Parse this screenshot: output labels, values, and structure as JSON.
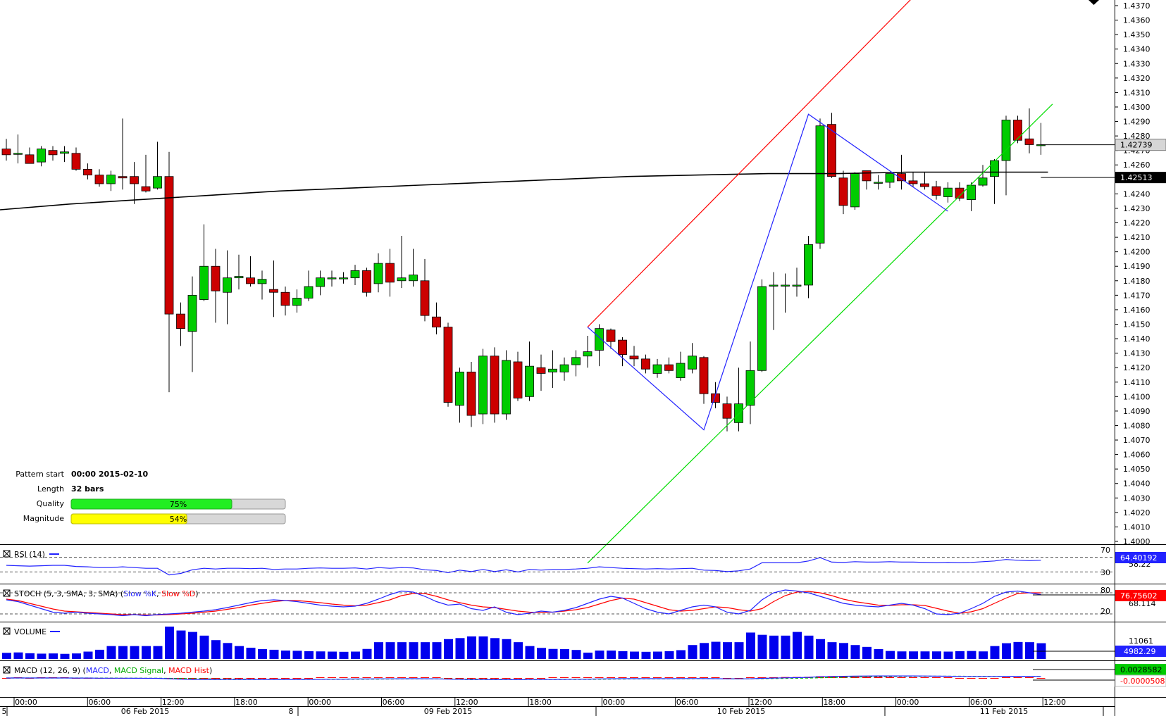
{
  "chart_data": {
    "type": "candlestick",
    "price_axis": {
      "range": [
        1.4,
        1.437
      ],
      "tick_labels": [
        "1.4370",
        "1.4360",
        "1.4350",
        "1.4340",
        "1.4330",
        "1.4320",
        "1.4310",
        "1.4300",
        "1.4290",
        "1.4280",
        "1.4270",
        "1.4260",
        "1.4250",
        "1.4240",
        "1.4230",
        "1.4220",
        "1.4210",
        "1.4200",
        "1.4190",
        "1.4180",
        "1.4170",
        "1.4160",
        "1.4150",
        "1.4140",
        "1.4130",
        "1.4120",
        "1.4110",
        "1.4100",
        "1.4090",
        "1.4080",
        "1.4070",
        "1.4060",
        "1.4050",
        "1.4040",
        "1.4030",
        "1.4020",
        "1.4010",
        "1.4000"
      ],
      "current_price": "1.42739",
      "ma_value": "1.42513"
    },
    "time_axis": {
      "hour_labels": [
        "00:00",
        "06:00",
        "12:00",
        "18:00",
        "00:00",
        "06:00",
        "12:00",
        "18:00",
        "00:00",
        "06:00",
        "12:00",
        "18:00",
        "00:00",
        "06:00",
        "12:00"
      ],
      "date_labels": [
        "06 Feb 2015",
        "09 Feb 2015",
        "10 Feb 2015",
        "11 Feb 2015"
      ],
      "edge_labels": [
        "5",
        "8"
      ]
    },
    "candles": [
      [
        1.4271,
        1.4278,
        1.4263,
        1.4267
      ],
      [
        1.4268,
        1.4281,
        1.4261,
        1.4268
      ],
      [
        1.4267,
        1.4272,
        1.4261,
        1.4261
      ],
      [
        1.4262,
        1.4273,
        1.4259,
        1.4271
      ],
      [
        1.427,
        1.4273,
        1.4263,
        1.4267
      ],
      [
        1.4268,
        1.4273,
        1.4262,
        1.4269
      ],
      [
        1.4268,
        1.4272,
        1.4256,
        1.4257
      ],
      [
        1.4257,
        1.4261,
        1.425,
        1.4253
      ],
      [
        1.4253,
        1.4257,
        1.4245,
        1.4247
      ],
      [
        1.4247,
        1.4256,
        1.4242,
        1.4253
      ],
      [
        1.4252,
        1.4292,
        1.4243,
        1.4251
      ],
      [
        1.4252,
        1.4262,
        1.4233,
        1.4247
      ],
      [
        1.4245,
        1.4267,
        1.4241,
        1.4242
      ],
      [
        1.4244,
        1.4276,
        1.4243,
        1.4252
      ],
      [
        1.4252,
        1.4269,
        1.4103,
        1.4157
      ],
      [
        1.4157,
        1.4165,
        1.4135,
        1.4147
      ],
      [
        1.4145,
        1.4183,
        1.4117,
        1.417
      ],
      [
        1.4167,
        1.4219,
        1.4166,
        1.419
      ],
      [
        1.419,
        1.4202,
        1.4151,
        1.4173
      ],
      [
        1.4172,
        1.4201,
        1.415,
        1.4182
      ],
      [
        1.4182,
        1.4198,
        1.4174,
        1.4183
      ],
      [
        1.4182,
        1.4197,
        1.4176,
        1.4178
      ],
      [
        1.4178,
        1.4187,
        1.4167,
        1.4181
      ],
      [
        1.4174,
        1.4194,
        1.4155,
        1.4172
      ],
      [
        1.4172,
        1.4176,
        1.4156,
        1.4163
      ],
      [
        1.4163,
        1.4174,
        1.4158,
        1.4168
      ],
      [
        1.4168,
        1.4187,
        1.4166,
        1.4176
      ],
      [
        1.4176,
        1.4187,
        1.417,
        1.4182
      ],
      [
        1.4182,
        1.4187,
        1.4176,
        1.4182
      ],
      [
        1.4182,
        1.4186,
        1.4178,
        1.4182
      ],
      [
        1.4182,
        1.4191,
        1.4177,
        1.4187
      ],
      [
        1.4187,
        1.4189,
        1.4169,
        1.4172
      ],
      [
        1.4178,
        1.4199,
        1.4172,
        1.4192
      ],
      [
        1.4192,
        1.4202,
        1.4169,
        1.4179
      ],
      [
        1.418,
        1.4211,
        1.4175,
        1.4182
      ],
      [
        1.418,
        1.4202,
        1.4176,
        1.4184
      ],
      [
        1.418,
        1.4195,
        1.4152,
        1.4156
      ],
      [
        1.4155,
        1.4165,
        1.4143,
        1.4148
      ],
      [
        1.4148,
        1.4151,
        1.4093,
        1.4096
      ],
      [
        1.4094,
        1.412,
        1.4082,
        1.4117
      ],
      [
        1.4117,
        1.4124,
        1.4079,
        1.4087
      ],
      [
        1.4088,
        1.4133,
        1.4081,
        1.4128
      ],
      [
        1.4128,
        1.4134,
        1.4082,
        1.4088
      ],
      [
        1.4088,
        1.4132,
        1.4084,
        1.4125
      ],
      [
        1.4124,
        1.4131,
        1.4097,
        1.4099
      ],
      [
        1.41,
        1.4138,
        1.4097,
        1.4121
      ],
      [
        1.412,
        1.4129,
        1.4104,
        1.4116
      ],
      [
        1.4117,
        1.4132,
        1.4106,
        1.4119
      ],
      [
        1.4117,
        1.4127,
        1.4111,
        1.4122
      ],
      [
        1.4122,
        1.4132,
        1.4114,
        1.4127
      ],
      [
        1.4128,
        1.4142,
        1.412,
        1.4131
      ],
      [
        1.4132,
        1.415,
        1.4121,
        1.4147
      ],
      [
        1.4146,
        1.4147,
        1.4133,
        1.4138
      ],
      [
        1.4139,
        1.4141,
        1.4121,
        1.4129
      ],
      [
        1.4128,
        1.4135,
        1.4121,
        1.4126
      ],
      [
        1.4126,
        1.4129,
        1.4116,
        1.4119
      ],
      [
        1.4116,
        1.4126,
        1.4113,
        1.4122
      ],
      [
        1.4122,
        1.4127,
        1.4116,
        1.4118
      ],
      [
        1.4113,
        1.4131,
        1.4111,
        1.4123
      ],
      [
        1.4119,
        1.4137,
        1.4116,
        1.4128
      ],
      [
        1.4127,
        1.4128,
        1.4095,
        1.4102
      ],
      [
        1.4102,
        1.411,
        1.4092,
        1.4096
      ],
      [
        1.4095,
        1.41,
        1.4076,
        1.4085
      ],
      [
        1.4082,
        1.412,
        1.4076,
        1.4095
      ],
      [
        1.4094,
        1.4138,
        1.4081,
        1.4118
      ],
      [
        1.4118,
        1.4181,
        1.4117,
        1.4176
      ],
      [
        1.4177,
        1.4186,
        1.4146,
        1.4177
      ],
      [
        1.4177,
        1.4185,
        1.4158,
        1.4177
      ],
      [
        1.4177,
        1.4189,
        1.4169,
        1.4177
      ],
      [
        1.4177,
        1.4211,
        1.4168,
        1.4205
      ],
      [
        1.4206,
        1.4292,
        1.4202,
        1.4287
      ],
      [
        1.4288,
        1.4296,
        1.4251,
        1.4252
      ],
      [
        1.4251,
        1.4256,
        1.4226,
        1.4232
      ],
      [
        1.4231,
        1.4255,
        1.4229,
        1.4254
      ],
      [
        1.4256,
        1.4256,
        1.4243,
        1.4249
      ],
      [
        1.4248,
        1.4253,
        1.4243,
        1.4248
      ],
      [
        1.4248,
        1.4254,
        1.4244,
        1.4254
      ],
      [
        1.4254,
        1.4267,
        1.4243,
        1.4249
      ],
      [
        1.4249,
        1.4255,
        1.4245,
        1.4247
      ],
      [
        1.4247,
        1.4255,
        1.4243,
        1.4245
      ],
      [
        1.4245,
        1.4249,
        1.4236,
        1.4239
      ],
      [
        1.4238,
        1.4248,
        1.4234,
        1.4244
      ],
      [
        1.4244,
        1.4248,
        1.4235,
        1.4237
      ],
      [
        1.4236,
        1.4248,
        1.4228,
        1.4246
      ],
      [
        1.4246,
        1.426,
        1.4245,
        1.4251
      ],
      [
        1.4252,
        1.4264,
        1.4233,
        1.4263
      ],
      [
        1.4263,
        1.4294,
        1.4239,
        1.4291
      ],
      [
        1.4291,
        1.4294,
        1.4275,
        1.4277
      ],
      [
        1.4278,
        1.4299,
        1.4268,
        1.4274
      ],
      [
        1.4274,
        1.4289,
        1.4267,
        1.4274
      ]
    ],
    "moving_average": [
      1.4229,
      1.4233,
      1.4236,
      1.4239,
      1.4242,
      1.4244,
      1.4246,
      1.4248,
      1.425,
      1.4252,
      1.4253,
      1.4254,
      1.4254,
      1.4255,
      1.4255,
      1.4255
    ],
    "annotation_lines": {
      "red": [
        [
          50,
          1.4148
        ],
        [
          79,
          1.4384
        ]
      ],
      "green": [
        [
          50,
          1.3985
        ],
        [
          90,
          1.4302
        ]
      ],
      "blue": [
        [
          50,
          1.4148
        ],
        [
          60,
          1.4077
        ],
        [
          69,
          1.4295
        ],
        [
          81,
          1.4228
        ]
      ]
    },
    "info_panel": {
      "pattern_start_label": "Pattern start",
      "pattern_start_value": "00:00 2015-02-10",
      "length_label": "Length",
      "length_value": "32 bars",
      "quality_label": "Quality",
      "quality_value": 75,
      "quality_text": "75%",
      "magnitude_label": "Magnitude",
      "magnitude_value": 54,
      "magnitude_text": "54%"
    },
    "rsi": {
      "title": "RSI (14)",
      "levels": [
        70,
        30
      ],
      "level_labels": [
        "70",
        "30"
      ],
      "current_value": "64.40192",
      "hidden_value": "58.22",
      "values": [
        48,
        47,
        46,
        47,
        48,
        48,
        45,
        44,
        42,
        42,
        44,
        42,
        40,
        40,
        22,
        26,
        36,
        40,
        38,
        40,
        40,
        39,
        40,
        37,
        38,
        38,
        40,
        41,
        40,
        40,
        41,
        38,
        42,
        40,
        42,
        41,
        36,
        34,
        28,
        35,
        31,
        37,
        31,
        36,
        30,
        37,
        35,
        37,
        37,
        38,
        40,
        44,
        42,
        40,
        39,
        38,
        39,
        38,
        39,
        40,
        35,
        34,
        31,
        33,
        38,
        55,
        55,
        55,
        55,
        60,
        69,
        57,
        56,
        58,
        57,
        57,
        58,
        57,
        57,
        56,
        55,
        56,
        55,
        56,
        58,
        60,
        64,
        62,
        61,
        62
      ]
    },
    "stoch": {
      "title": "STOCH (5, 3, SMA, 3, SMA)",
      "series_names": [
        "Slow %K",
        "Slow %D"
      ],
      "levels": [
        80,
        20
      ],
      "level_labels": [
        "80",
        "20"
      ],
      "current_value": "76.75602",
      "hidden_value": "68.114",
      "k": [
        60,
        55,
        45,
        35,
        25,
        22,
        25,
        22,
        20,
        18,
        15,
        18,
        15,
        18,
        20,
        22,
        25,
        28,
        32,
        38,
        45,
        52,
        58,
        60,
        58,
        55,
        50,
        45,
        42,
        40,
        42,
        50,
        62,
        75,
        85,
        82,
        70,
        55,
        45,
        48,
        35,
        30,
        40,
        25,
        18,
        22,
        28,
        25,
        30,
        38,
        50,
        62,
        70,
        65,
        50,
        35,
        25,
        20,
        30,
        40,
        45,
        40,
        25,
        20,
        30,
        60,
        80,
        88,
        85,
        80,
        70,
        60,
        50,
        45,
        42,
        40,
        45,
        50,
        45,
        35,
        20,
        18,
        22,
        35,
        50,
        70,
        82,
        85,
        80,
        75
      ],
      "d": [
        62,
        58,
        50,
        42,
        34,
        28,
        26,
        24,
        22,
        20,
        18,
        18,
        17,
        17,
        18,
        20,
        22,
        25,
        28,
        33,
        38,
        45,
        50,
        55,
        58,
        58,
        55,
        52,
        48,
        45,
        43,
        45,
        52,
        60,
        72,
        78,
        78,
        70,
        60,
        52,
        45,
        40,
        38,
        33,
        28,
        25,
        24,
        25,
        28,
        32,
        38,
        48,
        58,
        65,
        62,
        52,
        42,
        32,
        28,
        30,
        35,
        40,
        38,
        32,
        28,
        35,
        55,
        72,
        82,
        84,
        80,
        72,
        62,
        55,
        50,
        45,
        44,
        46,
        46,
        44,
        36,
        28,
        22,
        26,
        35,
        50,
        65,
        78,
        80,
        80
      ]
    },
    "volume": {
      "title": "VOLUME",
      "tick_label": "11061",
      "current_value": "4982.29",
      "values": [
        3000,
        3200,
        2800,
        2600,
        2700,
        2500,
        2700,
        3600,
        4500,
        6300,
        6300,
        6300,
        6300,
        6300,
        15800,
        13900,
        13200,
        11400,
        9200,
        7800,
        6300,
        5500,
        4800,
        4500,
        4100,
        4000,
        3800,
        3700,
        3600,
        3500,
        3600,
        4900,
        8200,
        8200,
        8200,
        8200,
        8200,
        8200,
        9700,
        10200,
        11000,
        11000,
        10200,
        9700,
        8200,
        6300,
        5400,
        4900,
        4800,
        4400,
        3100,
        4100,
        4100,
        3800,
        3600,
        3500,
        3600,
        3800,
        4300,
        6800,
        7800,
        8400,
        8200,
        8200,
        12900,
        11800,
        11400,
        11400,
        13200,
        11400,
        9700,
        8200,
        7800,
        6800,
        5900,
        4800,
        3900,
        3700,
        3700,
        3700,
        3700,
        3600,
        3800,
        3900,
        3700,
        6300,
        7700,
        8300,
        8200,
        7700
      ]
    },
    "macd": {
      "title": "MACD (12, 26, 9)",
      "series_names": [
        "MACD",
        "MACD Signal",
        "MACD Hist"
      ],
      "current_value": "0.0028582",
      "hist_value": "-0.0000508"
    }
  }
}
